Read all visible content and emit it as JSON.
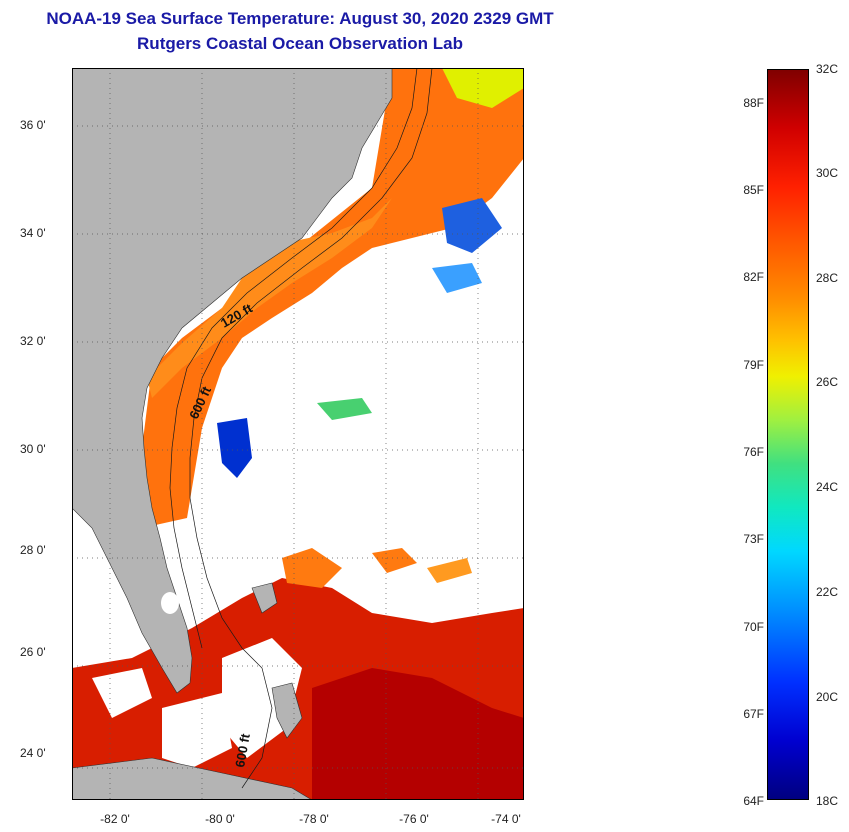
{
  "title": {
    "line1": "NOAA-19 Sea Surface Temperature:  August 30, 2020 2329 GMT",
    "line2": "Rutgers Coastal Ocean Observation Lab"
  },
  "map": {
    "lat_labels": [
      "36 0'",
      "34 0'",
      "32 0'",
      "30 0'",
      "28 0'",
      "26 0'",
      "24 0'"
    ],
    "lon_labels": [
      "-82 0'",
      "-80 0'",
      "-78 0'",
      "-76 0'",
      "-74 0'"
    ],
    "contour_labels": [
      "120 ft",
      "600 ft",
      "600 ft"
    ],
    "colors": {
      "land": "#b4b4b4",
      "cloud": "#ffffff",
      "grid": "#555555"
    }
  },
  "colorbar": {
    "fahrenheit": [
      "88F",
      "85F",
      "82F",
      "79F",
      "76F",
      "73F",
      "70F",
      "67F",
      "64F"
    ],
    "celsius": [
      "32C",
      "30C",
      "28C",
      "26C",
      "24C",
      "22C",
      "20C",
      "18C"
    ]
  }
}
